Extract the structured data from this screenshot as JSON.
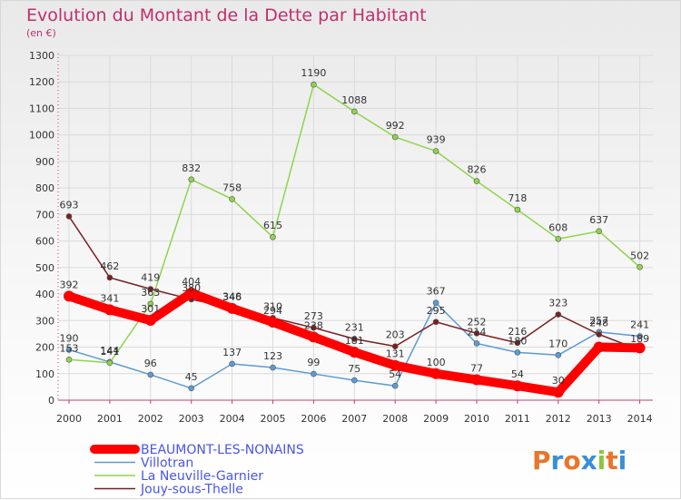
{
  "chart_data": {
    "type": "line",
    "title": "Evolution du Montant de la Dette par Habitant",
    "subtitle": "(en €)",
    "xlabel": "",
    "ylabel": "",
    "ylim": [
      0,
      1300
    ],
    "y_ticks": [
      0,
      100,
      200,
      300,
      400,
      500,
      600,
      700,
      800,
      900,
      1000,
      1100,
      1200,
      1300
    ],
    "x": [
      "2000",
      "2001",
      "2002",
      "2003",
      "2004",
      "2005",
      "2006",
      "2007",
      "2008",
      "2009",
      "2010",
      "2011",
      "2012",
      "2013",
      "2014"
    ],
    "grid": true,
    "legend_position": "bottom-left",
    "series": [
      {
        "name": "BEAUMONT-LES-NONAINS",
        "color": "#ff0000",
        "values": [
          392,
          341,
          301,
          404,
          346,
          294,
          238,
          181,
          131,
          100,
          77,
          54,
          30,
          200,
          197
        ],
        "labels": [
          "392",
          "341",
          "301",
          "404",
          "346",
          "294",
          "238",
          "181",
          "131",
          "100",
          "77",
          "54",
          "30",
          "",
          ""
        ]
      },
      {
        "name": "Villotran",
        "color": "#5b9bd5",
        "values": [
          190,
          144,
          96,
          45,
          137,
          123,
          99,
          75,
          54,
          367,
          214,
          180,
          170,
          257,
          241
        ],
        "labels": [
          "190",
          "144",
          "96",
          "45",
          "137",
          "123",
          "99",
          "75",
          "54",
          "367",
          "214",
          "180",
          "170",
          "257",
          "241"
        ]
      },
      {
        "name": "La Neuville-Garnier",
        "color": "#8fd44a",
        "values": [
          153,
          141,
          363,
          832,
          758,
          615,
          1190,
          1088,
          992,
          939,
          826,
          718,
          608,
          637,
          502
        ],
        "labels": [
          "153",
          "141",
          "363",
          "832",
          "758",
          "615",
          "1190",
          "1088",
          "992",
          "939",
          "826",
          "718",
          "608",
          "637",
          "502"
        ]
      },
      {
        "name": "Jouy-sous-Thelle",
        "color": "#7a2020",
        "values": [
          693,
          462,
          419,
          380,
          348,
          310,
          273,
          231,
          203,
          295,
          252,
          216,
          323,
          248,
          189
        ],
        "labels": [
          "693",
          "462",
          "419",
          "380",
          "348",
          "310",
          "273",
          "231",
          "203",
          "295",
          "252",
          "216",
          "323",
          "248",
          "189"
        ]
      }
    ]
  },
  "logo": {
    "text": "Proxiti",
    "colors": [
      "#e8752a",
      "#3a8fd6",
      "#e8752a",
      "#3a8fd6",
      "#8cc63f",
      "#e8752a",
      "#3a8fd6"
    ]
  }
}
